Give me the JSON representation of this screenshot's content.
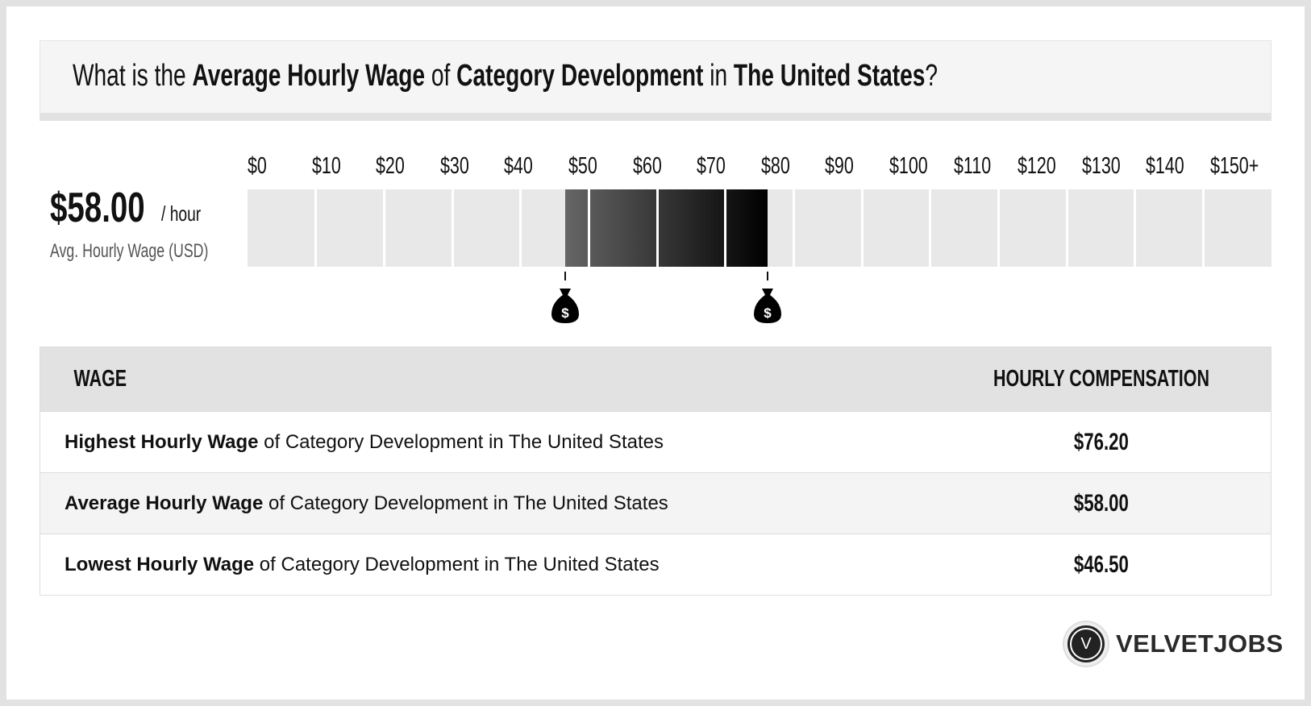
{
  "header": {
    "q1": "What is the ",
    "b1": "Average Hourly Wage",
    "q2": " of ",
    "b2": "Category Development",
    "q3": " in ",
    "b3": "The United States",
    "q4": "?"
  },
  "summary": {
    "value": "$58.00",
    "unit": "/ hour",
    "label": "Avg. Hourly Wage (USD)"
  },
  "chart_data": {
    "type": "range-bar",
    "ticks": [
      "$0",
      "$10",
      "$20",
      "$30",
      "$40",
      "$50",
      "$60",
      "$70",
      "$80",
      "$90",
      "$100",
      "$110",
      "$120",
      "$130",
      "$140",
      "$150+"
    ],
    "xlim": [
      0,
      150
    ],
    "low": 46.5,
    "high": 76.2,
    "average": 58.0,
    "marker_icon": "money-bag-icon",
    "colors": {
      "track": "#e8e8e8",
      "fill_start": "#666666",
      "fill_end": "#000000"
    }
  },
  "table": {
    "headers": [
      "WAGE",
      "HOURLY COMPENSATION"
    ],
    "rows": [
      {
        "bold": "Highest Hourly Wage",
        "rest": " of Category Development in The United States",
        "value": "$76.20"
      },
      {
        "bold": "Average Hourly Wage",
        "rest": " of Category Development in The United States",
        "value": "$58.00"
      },
      {
        "bold": "Lowest Hourly Wage",
        "rest": " of Category Development in The United States",
        "value": "$46.50"
      }
    ]
  },
  "logo": {
    "mark": "V",
    "text": "VELVETJOBS"
  }
}
